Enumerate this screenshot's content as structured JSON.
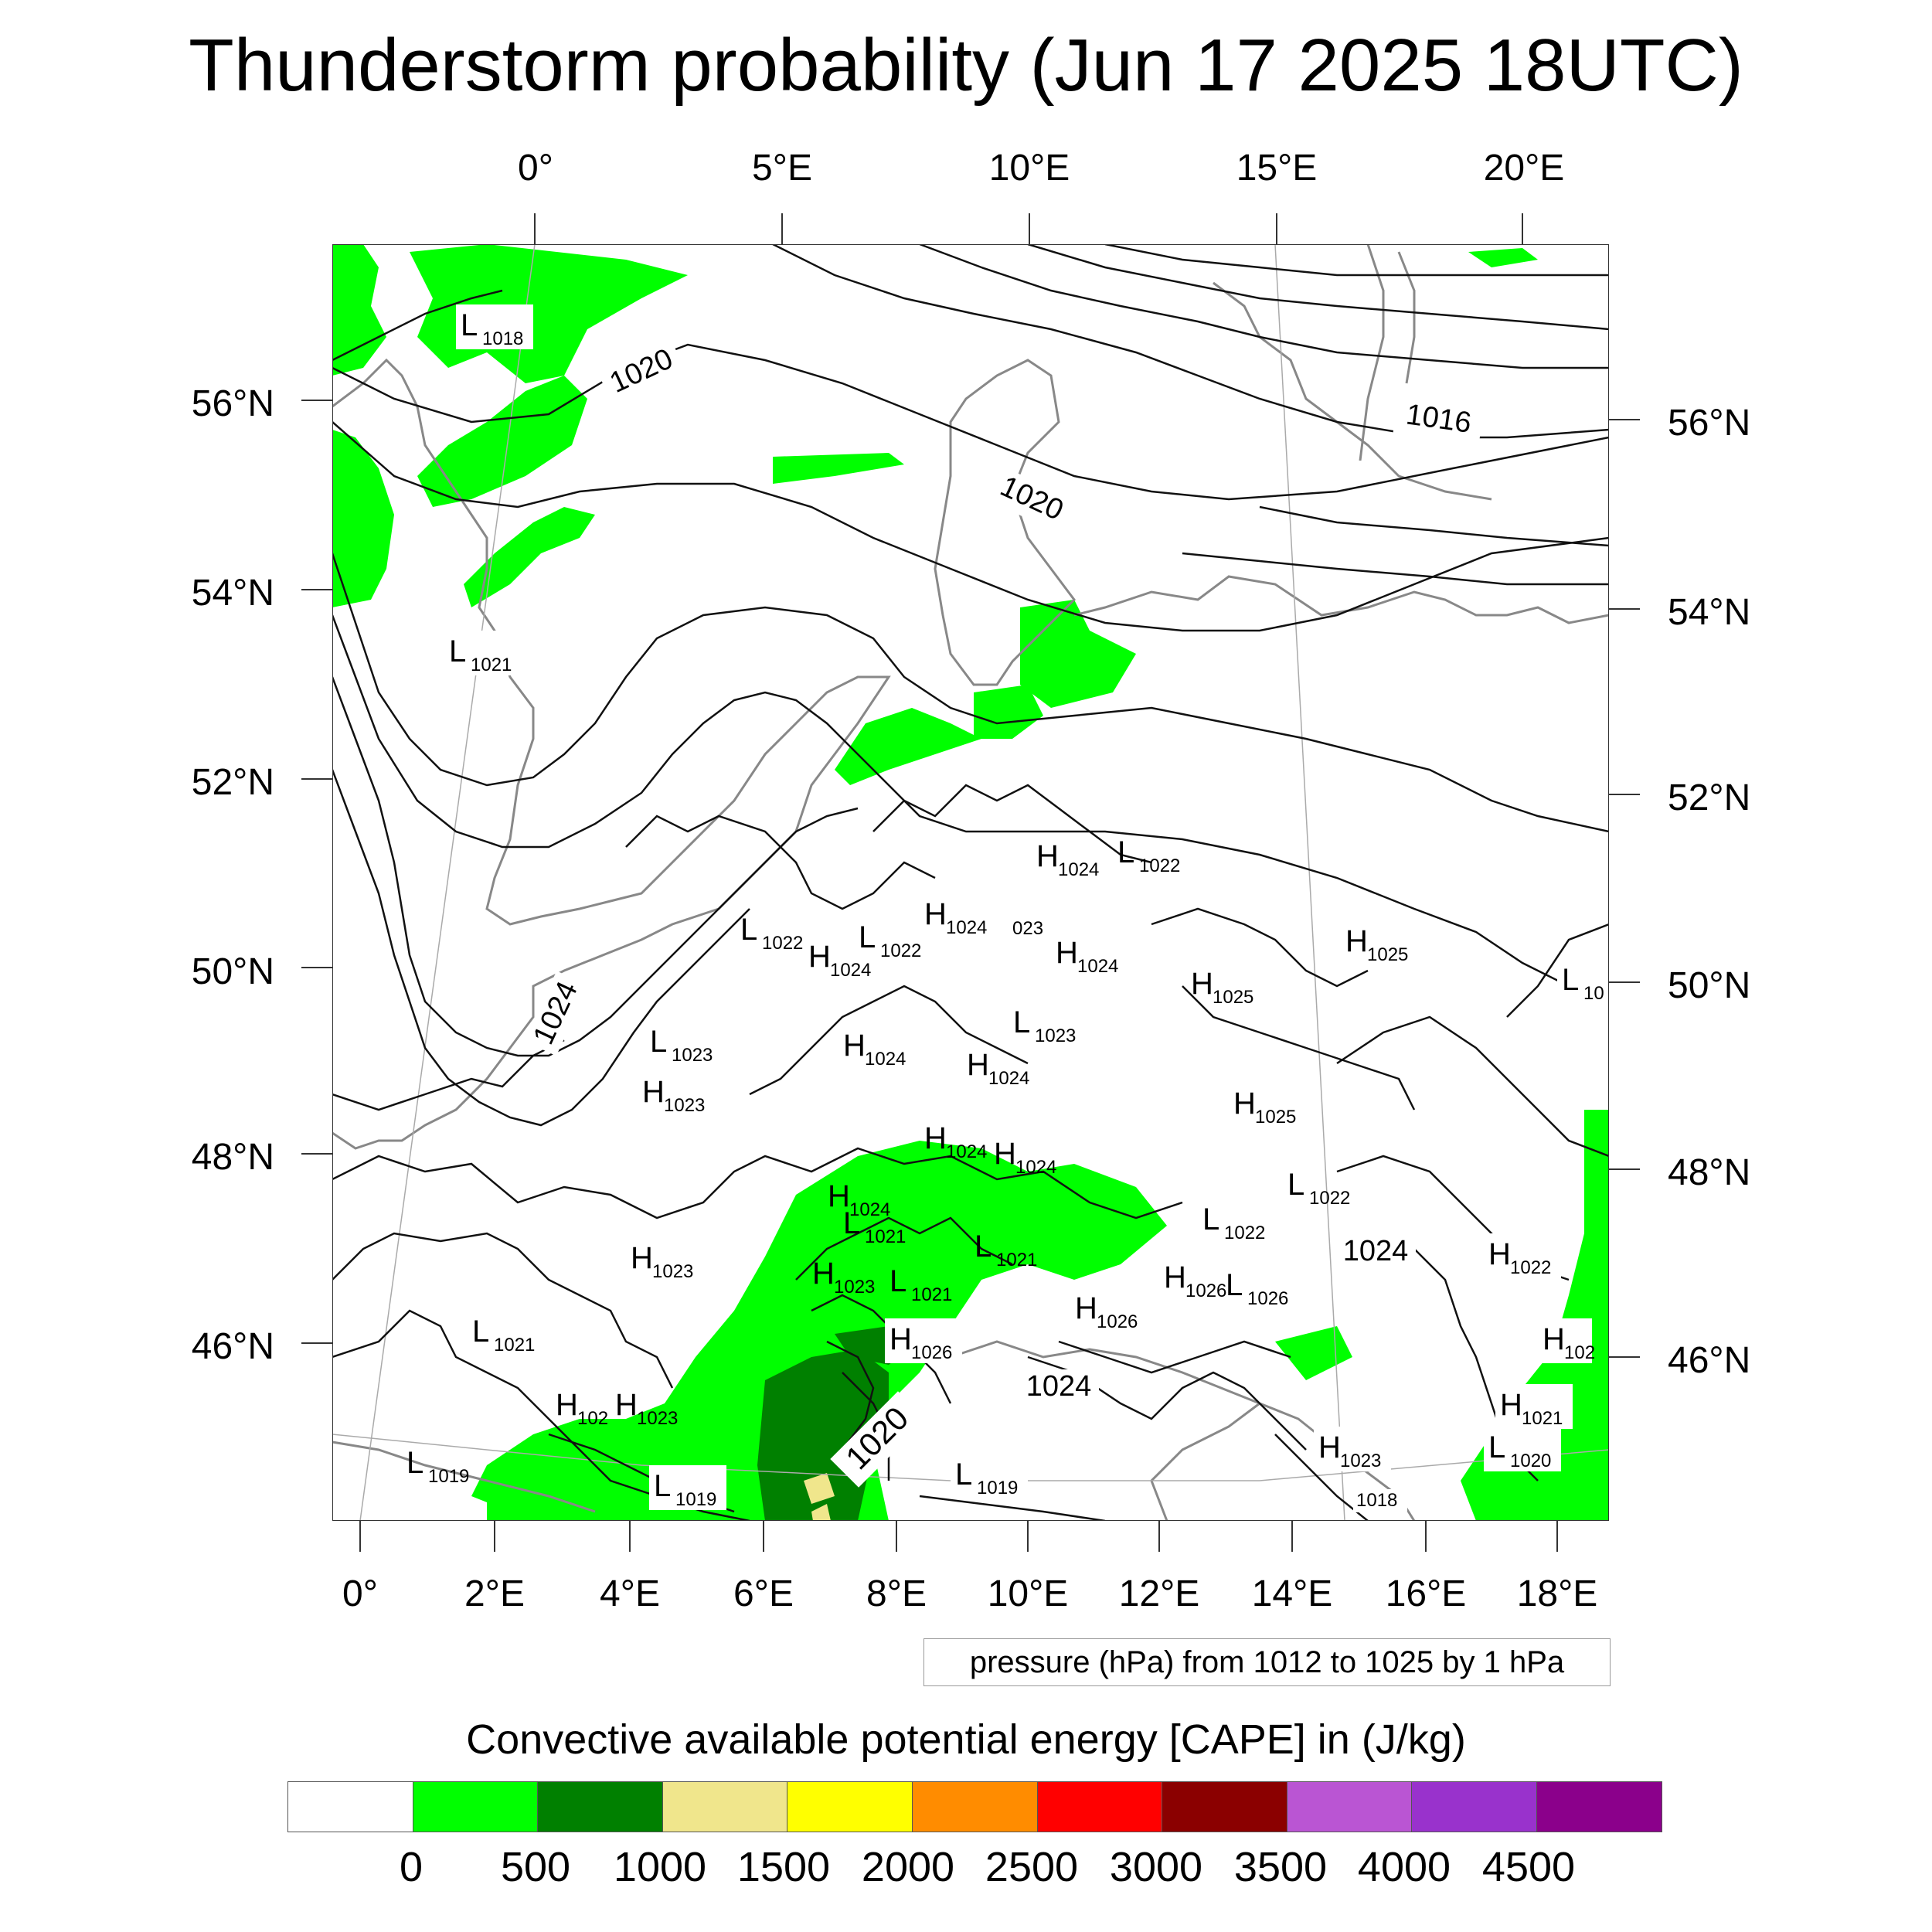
{
  "title": "Thunderstorm probability (Jun 17 2025 18UTC)",
  "axes": {
    "top": [
      "0°",
      "5°E",
      "10°E",
      "15°E",
      "20°E"
    ],
    "bottom": [
      "0°",
      "2°E",
      "4°E",
      "6°E",
      "8°E",
      "10°E",
      "12°E",
      "14°E",
      "16°E",
      "18°E"
    ],
    "left": [
      "56°N",
      "54°N",
      "52°N",
      "50°N",
      "48°N",
      "46°N"
    ],
    "right": [
      "56°N",
      "54°N",
      "52°N",
      "50°N",
      "48°N",
      "46°N"
    ]
  },
  "pressure_labels": [
    {
      "k": "L",
      "v": "1018"
    },
    {
      "k": "",
      "v": "1020"
    },
    {
      "k": "",
      "v": "1016"
    },
    {
      "k": "",
      "v": "1020"
    },
    {
      "k": "L",
      "v": "1021"
    },
    {
      "k": "H",
      "v": "1024"
    },
    {
      "k": "L",
      "v": "1022"
    },
    {
      "k": "H",
      "v": "1024"
    },
    {
      "k": "",
      "v": "023"
    },
    {
      "k": "L",
      "v": "1022"
    },
    {
      "k": "L",
      "v": "1022"
    },
    {
      "k": "H",
      "v": "1024"
    },
    {
      "k": "H",
      "v": "1024"
    },
    {
      "k": "H",
      "v": "1025"
    },
    {
      "k": "H",
      "v": "1025"
    },
    {
      "k": "L",
      "v": "10"
    },
    {
      "k": "",
      "v": "1024"
    },
    {
      "k": "L",
      "v": "1023"
    },
    {
      "k": "L",
      "v": "1023"
    },
    {
      "k": "H",
      "v": "1024"
    },
    {
      "k": "H",
      "v": "1024"
    },
    {
      "k": "H",
      "v": "1023"
    },
    {
      "k": "H",
      "v": "1025"
    },
    {
      "k": "H",
      "v": "1024"
    },
    {
      "k": "H",
      "v": "1024"
    },
    {
      "k": "L",
      "v": "1022"
    },
    {
      "k": "H",
      "v": "1024"
    },
    {
      "k": "L",
      "v": "1021"
    },
    {
      "k": "L",
      "v": "1022"
    },
    {
      "k": "",
      "v": "1024"
    },
    {
      "k": "H",
      "v": "1023"
    },
    {
      "k": "L",
      "v": "1021"
    },
    {
      "k": "H",
      "v": "1023"
    },
    {
      "k": "L",
      "v": "1021"
    },
    {
      "k": "H",
      "v": "1026"
    },
    {
      "k": "L",
      "v": "1026"
    },
    {
      "k": "H",
      "v": "1022"
    },
    {
      "k": "H",
      "v": "1026"
    },
    {
      "k": "L",
      "v": "1021"
    },
    {
      "k": "H",
      "v": "1026"
    },
    {
      "k": "H",
      "v": "102"
    },
    {
      "k": "",
      "v": "1024"
    },
    {
      "k": "H",
      "v": "102"
    },
    {
      "k": "H",
      "v": "1023"
    },
    {
      "k": "",
      "v": "1020"
    },
    {
      "k": "H",
      "v": "1021"
    },
    {
      "k": "L",
      "v": "1019"
    },
    {
      "k": "L",
      "v": "1019"
    },
    {
      "k": "L",
      "v": "1019"
    },
    {
      "k": "H",
      "v": "1023"
    },
    {
      "k": "L",
      "v": "1020"
    },
    {
      "k": "",
      "v": "1018"
    }
  ],
  "caption": "pressure (hPa) from 1012 to 1025 by 1 hPa",
  "colorbar": {
    "title": "Convective available potential energy [CAPE] in (J/kg)",
    "colors": [
      "#ffffff",
      "#00ff00",
      "#008000",
      "#f0e68c",
      "#ffff00",
      "#ff8c00",
      "#ff0000",
      "#8b0000",
      "#ba55d3",
      "#9932cc",
      "#8b008b"
    ],
    "labels": [
      "0",
      "500",
      "1000",
      "1500",
      "2000",
      "2500",
      "3000",
      "3500",
      "4000",
      "4500"
    ]
  }
}
